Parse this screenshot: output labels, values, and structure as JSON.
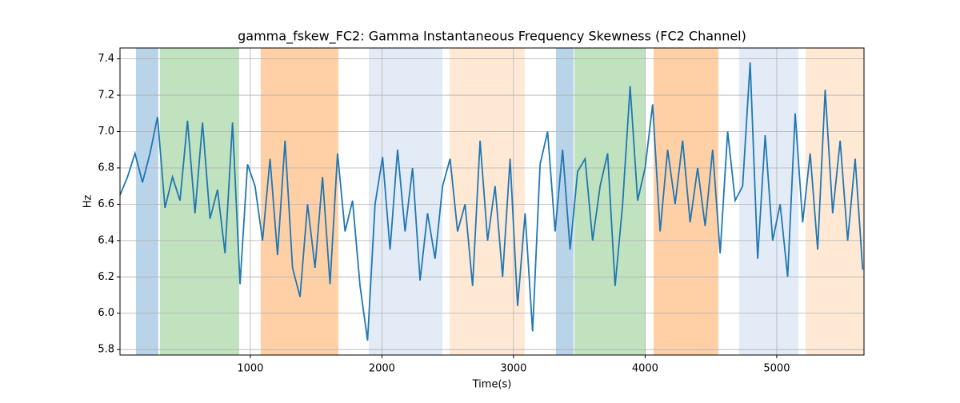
{
  "chart_data": {
    "type": "line",
    "title": "gamma_fskew_FC2: Gamma Instantaneous Frequency Skewness (FC2 Channel)",
    "x_label": "Time(s)",
    "y_label": "Hz",
    "x": [
      10,
      67,
      124,
      181,
      238,
      295,
      352,
      409,
      466,
      523,
      580,
      637,
      694,
      751,
      808,
      865,
      922,
      979,
      1036,
      1093,
      1150,
      1207,
      1264,
      1321,
      1378,
      1435,
      1492,
      1549,
      1606,
      1663,
      1720,
      1777,
      1834,
      1891,
      1948,
      2005,
      2062,
      2119,
      2176,
      2233,
      2290,
      2347,
      2404,
      2461,
      2518,
      2575,
      2632,
      2689,
      2746,
      2803,
      2860,
      2917,
      2974,
      3031,
      3088,
      3145,
      3202,
      3259,
      3316,
      3373,
      3430,
      3487,
      3544,
      3601,
      3658,
      3715,
      3772,
      3829,
      3886,
      3943,
      4000,
      4057,
      4114,
      4171,
      4228,
      4285,
      4342,
      4399,
      4456,
      4513,
      4570,
      4627,
      4684,
      4741,
      4798,
      4855,
      4912,
      4969,
      5026,
      5083,
      5140,
      5197,
      5254,
      5311,
      5368,
      5425,
      5482,
      5539,
      5596,
      5653
    ],
    "series": [
      {
        "name": "gamma_fskew_FC2",
        "color": "#1f77b4",
        "values": [
          6.65,
          6.75,
          6.88,
          6.72,
          6.88,
          7.08,
          6.58,
          6.75,
          6.62,
          7.06,
          6.55,
          7.05,
          6.52,
          6.68,
          6.33,
          7.05,
          6.16,
          6.82,
          6.7,
          6.4,
          6.85,
          6.32,
          6.95,
          6.25,
          6.09,
          6.6,
          6.25,
          6.75,
          6.16,
          6.88,
          6.45,
          6.62,
          6.15,
          5.85,
          6.6,
          6.86,
          6.35,
          6.9,
          6.45,
          6.8,
          6.18,
          6.55,
          6.3,
          6.7,
          6.85,
          6.45,
          6.6,
          6.15,
          6.95,
          6.4,
          6.7,
          6.2,
          6.85,
          6.04,
          6.55,
          5.9,
          6.82,
          7.0,
          6.45,
          6.9,
          6.35,
          6.78,
          6.85,
          6.4,
          6.7,
          6.88,
          6.15,
          6.6,
          7.25,
          6.62,
          6.8,
          7.15,
          6.45,
          6.9,
          6.6,
          6.95,
          6.5,
          6.8,
          6.48,
          6.9,
          6.33,
          7.0,
          6.62,
          6.7,
          7.38,
          6.3,
          6.98,
          6.4,
          6.6,
          6.2,
          7.1,
          6.5,
          6.88,
          6.35,
          7.23,
          6.55,
          6.95,
          6.4,
          6.85,
          6.24
        ]
      }
    ],
    "spans": [
      {
        "start": 131,
        "end": 301,
        "color": "#b9d3e8"
      },
      {
        "start": 313,
        "end": 915,
        "color": "#c0e2bf"
      },
      {
        "start": 1079,
        "end": 1669,
        "color": "#ffd0a6"
      },
      {
        "start": 1900,
        "end": 2459,
        "color": "#e3ecf6"
      },
      {
        "start": 2514,
        "end": 3085,
        "color": "#ffe9d5"
      },
      {
        "start": 3322,
        "end": 3456,
        "color": "#b9d3e8"
      },
      {
        "start": 3462,
        "end": 4003,
        "color": "#c0e2bf"
      },
      {
        "start": 4064,
        "end": 4556,
        "color": "#ffd0a6"
      },
      {
        "start": 4714,
        "end": 5164,
        "color": "#e3ecf6"
      },
      {
        "start": 5219,
        "end": 5663,
        "color": "#ffe9d5"
      }
    ],
    "xlim": [
      10,
      5663
    ],
    "ylim": [
      5.77,
      7.46
    ],
    "xticks": [
      1000,
      2000,
      3000,
      4000,
      5000
    ],
    "yticks": [
      5.8,
      {
        "value": 6,
        "label": "6.0"
      },
      6.2,
      6.4,
      6.6,
      6.8,
      {
        "value": 7,
        "label": "7.0"
      },
      7.2,
      7.4
    ],
    "grid": true
  }
}
